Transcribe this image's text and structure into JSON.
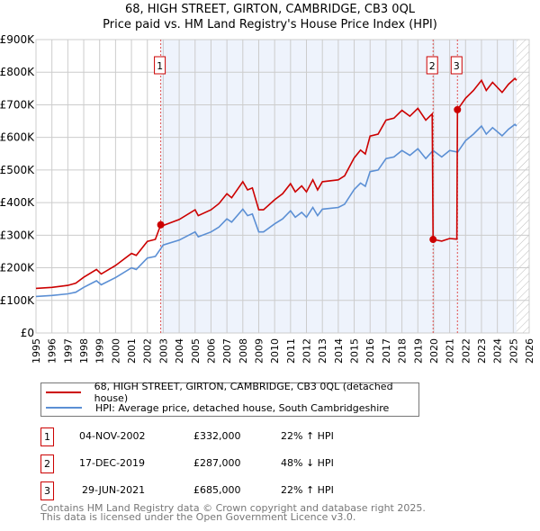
{
  "chart_data": {
    "type": "line",
    "title": "68, HIGH STREET, GIRTON, CAMBRIDGE, CB3 0QL",
    "subtitle": "Price paid vs. HM Land Registry's House Price Index (HPI)",
    "xlim": [
      1995,
      2026
    ],
    "ylim": [
      0,
      900000
    ],
    "grid": true,
    "x_ticks": [
      "1995",
      "1996",
      "1997",
      "1998",
      "1999",
      "2000",
      "2001",
      "2002",
      "2003",
      "2004",
      "2005",
      "2006",
      "2007",
      "2008",
      "2009",
      "2010",
      "2011",
      "2012",
      "2013",
      "2014",
      "2015",
      "2016",
      "2017",
      "2018",
      "2019",
      "2020",
      "2021",
      "2022",
      "2023",
      "2024",
      "2025",
      "2026"
    ],
    "y_ticks": [
      {
        "v": 0,
        "label": "£0"
      },
      {
        "v": 100000,
        "label": "£100K"
      },
      {
        "v": 200000,
        "label": "£200K"
      },
      {
        "v": 300000,
        "label": "£300K"
      },
      {
        "v": 400000,
        "label": "£400K"
      },
      {
        "v": 500000,
        "label": "£500K"
      },
      {
        "v": 600000,
        "label": "£600K"
      },
      {
        "v": 700000,
        "label": "£700K"
      },
      {
        "v": 800000,
        "label": "£800K"
      },
      {
        "v": 900000,
        "label": "£900K"
      }
    ],
    "colors": {
      "property": "#cc0000",
      "hpi": "#5b8fd4",
      "shade": "#eef3fc"
    },
    "shaded_range": [
      2002.84,
      2025.2
    ],
    "forecast_hatch_from": 2025.2,
    "series": [
      {
        "name": "68, HIGH STREET, GIRTON, CAMBRIDGE, CB3 0QL (detached house)",
        "key": "property",
        "points": [
          [
            1995,
            137
          ],
          [
            1996,
            140
          ],
          [
            1997,
            146
          ],
          [
            1997.5,
            153
          ],
          [
            1998,
            171
          ],
          [
            1998.8,
            195
          ],
          [
            1999.1,
            181
          ],
          [
            2000,
            207
          ],
          [
            2001,
            244
          ],
          [
            2001.3,
            238
          ],
          [
            2002,
            281
          ],
          [
            2002.5,
            287
          ],
          [
            2002.84,
            332
          ],
          [
            2003,
            330
          ],
          [
            2004,
            348
          ],
          [
            2005,
            378
          ],
          [
            2005.2,
            360
          ],
          [
            2006,
            378
          ],
          [
            2006.5,
            397
          ],
          [
            2007,
            427
          ],
          [
            2007.3,
            415
          ],
          [
            2008,
            464
          ],
          [
            2008.3,
            439
          ],
          [
            2008.6,
            445
          ],
          [
            2009,
            378
          ],
          [
            2009.3,
            378
          ],
          [
            2010,
            409
          ],
          [
            2010.5,
            427
          ],
          [
            2011,
            458
          ],
          [
            2011.3,
            433
          ],
          [
            2011.7,
            451
          ],
          [
            2012,
            433
          ],
          [
            2012.4,
            470
          ],
          [
            2012.7,
            439
          ],
          [
            2013,
            464
          ],
          [
            2014,
            470
          ],
          [
            2014.4,
            482
          ],
          [
            2015,
            537
          ],
          [
            2015.4,
            561
          ],
          [
            2015.7,
            549
          ],
          [
            2016,
            604
          ],
          [
            2016.5,
            610
          ],
          [
            2017,
            653
          ],
          [
            2017.5,
            659
          ],
          [
            2018,
            683
          ],
          [
            2018.5,
            665
          ],
          [
            2019,
            689
          ],
          [
            2019.5,
            653
          ],
          [
            2019.9,
            672
          ],
          [
            2019.96,
            287
          ],
          [
            2020.5,
            282
          ],
          [
            2021,
            290
          ],
          [
            2021.45,
            288
          ],
          [
            2021.49,
            685
          ],
          [
            2022,
            720
          ],
          [
            2022.5,
            744
          ],
          [
            2023,
            775
          ],
          [
            2023.3,
            744
          ],
          [
            2023.7,
            769
          ],
          [
            2024.3,
            738
          ],
          [
            2024.7,
            763
          ],
          [
            2025.1,
            781
          ],
          [
            2025.2,
            775
          ]
        ]
      },
      {
        "name": "HPI: Average price, detached house, South Cambridgeshire",
        "key": "hpi",
        "points": [
          [
            1995,
            112
          ],
          [
            1996,
            115
          ],
          [
            1997,
            120
          ],
          [
            1997.5,
            125
          ],
          [
            1998,
            140
          ],
          [
            1998.8,
            160
          ],
          [
            1999.1,
            148
          ],
          [
            2000,
            170
          ],
          [
            2001,
            200
          ],
          [
            2001.3,
            195
          ],
          [
            2002,
            230
          ],
          [
            2002.5,
            235
          ],
          [
            2003,
            270
          ],
          [
            2004,
            285
          ],
          [
            2005,
            310
          ],
          [
            2005.2,
            295
          ],
          [
            2006,
            310
          ],
          [
            2006.5,
            325
          ],
          [
            2007,
            350
          ],
          [
            2007.3,
            340
          ],
          [
            2008,
            380
          ],
          [
            2008.3,
            360
          ],
          [
            2008.6,
            365
          ],
          [
            2009,
            310
          ],
          [
            2009.3,
            310
          ],
          [
            2010,
            335
          ],
          [
            2010.5,
            350
          ],
          [
            2011,
            375
          ],
          [
            2011.3,
            355
          ],
          [
            2011.7,
            370
          ],
          [
            2012,
            355
          ],
          [
            2012.4,
            385
          ],
          [
            2012.7,
            360
          ],
          [
            2013,
            380
          ],
          [
            2014,
            385
          ],
          [
            2014.4,
            395
          ],
          [
            2015,
            440
          ],
          [
            2015.4,
            460
          ],
          [
            2015.7,
            450
          ],
          [
            2016,
            495
          ],
          [
            2016.5,
            500
          ],
          [
            2017,
            535
          ],
          [
            2017.5,
            540
          ],
          [
            2018,
            560
          ],
          [
            2018.5,
            545
          ],
          [
            2019,
            565
          ],
          [
            2019.5,
            535
          ],
          [
            2019.96,
            560
          ],
          [
            2020.5,
            540
          ],
          [
            2021,
            560
          ],
          [
            2021.5,
            555
          ],
          [
            2022,
            590
          ],
          [
            2022.5,
            610
          ],
          [
            2023,
            635
          ],
          [
            2023.3,
            610
          ],
          [
            2023.7,
            630
          ],
          [
            2024.3,
            605
          ],
          [
            2024.7,
            625
          ],
          [
            2025.1,
            640
          ],
          [
            2025.2,
            635
          ]
        ]
      }
    ],
    "value_unit": "thousand GBP",
    "transactions": [
      {
        "id": "1",
        "x": 2002.84,
        "value": 332,
        "date": "04-NOV-2002",
        "price": "£332,000",
        "hpi": "22% ↑ HPI"
      },
      {
        "id": "2",
        "x": 2019.96,
        "value": 287,
        "date": "17-DEC-2019",
        "price": "£287,000",
        "hpi": "48% ↓ HPI"
      },
      {
        "id": "3",
        "x": 2021.49,
        "value": 685,
        "date": "29-JUN-2021",
        "price": "£685,000",
        "hpi": "22% ↑ HPI"
      }
    ]
  },
  "footer": {
    "line1": "Contains HM Land Registry data © Crown copyright and database right 2025.",
    "line2": "This data is licensed under the Open Government Licence v3.0."
  }
}
